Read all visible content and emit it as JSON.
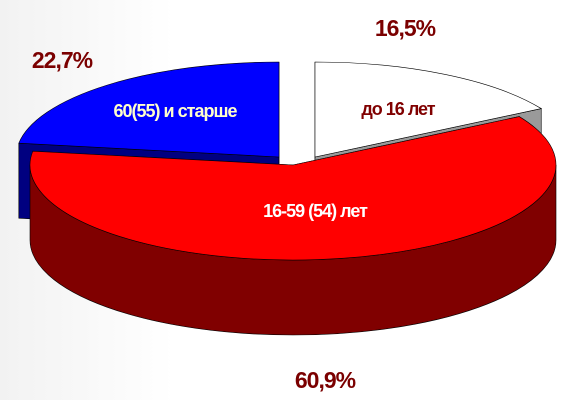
{
  "chart_data": {
    "type": "pie3d",
    "categories": [
      "до 16 лет",
      "16-59 (54) лет",
      "60(55) и старше"
    ],
    "values": [
      16.5,
      60.9,
      22.7
    ],
    "value_labels": [
      "16,5%",
      "60,9%",
      "22,7%"
    ],
    "colors": [
      "#ffffff",
      "#ff0000",
      "#0000ff"
    ]
  }
}
